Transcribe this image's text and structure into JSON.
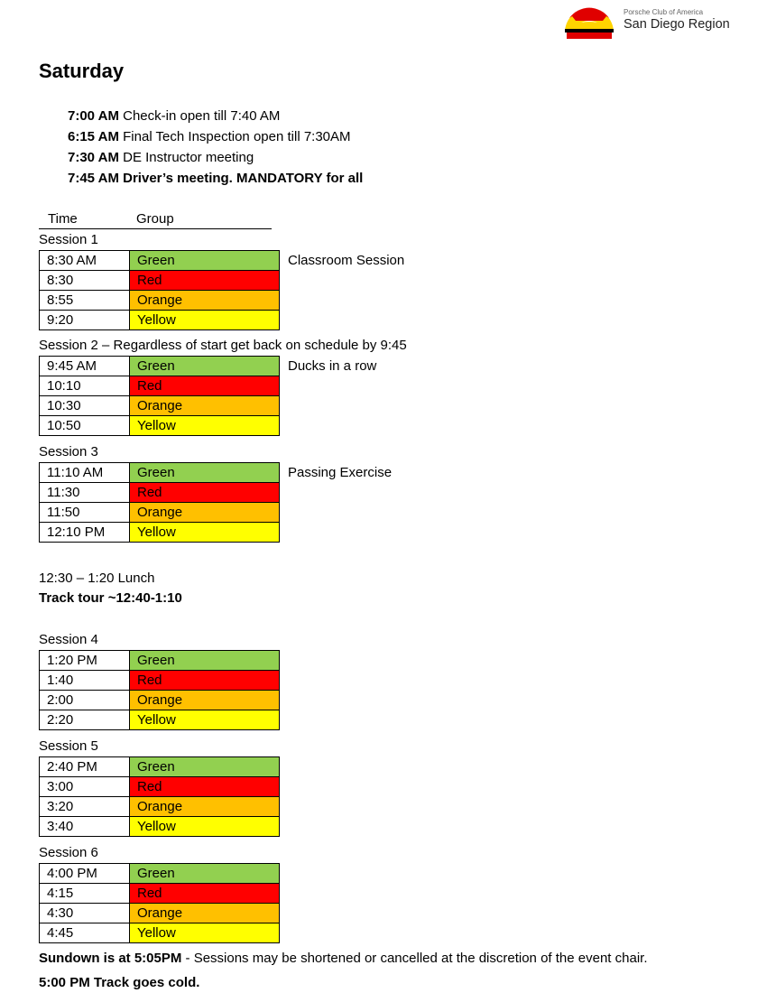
{
  "header": {
    "logo_text": "PORSCHE CLUB OF AMERICA SAN DIEGO",
    "org_subtitle": "Porsche Club of America",
    "org_title": "San Diego Region"
  },
  "day": "Saturday",
  "pre_schedule": [
    {
      "time": "7:00 AM",
      "text": " Check-in open till 7:40 AM",
      "all_bold": false
    },
    {
      "time": "6:15 AM",
      "text": " Final Tech Inspection open till 7:30AM",
      "all_bold": false
    },
    {
      "time": "7:30 AM",
      "text": " DE Instructor meeting",
      "all_bold": false
    },
    {
      "time": "7:45 AM",
      "text": " Driver’s meeting. MANDATORY for all",
      "all_bold": true
    }
  ],
  "columns": {
    "time": "Time",
    "group": "Group"
  },
  "group_colors": {
    "Green": "#92D050",
    "Red": "#FF0000",
    "Orange": "#FFC000",
    "Yellow": "#FFFF00"
  },
  "sessions": [
    {
      "label": "Session 1",
      "note": "Classroom Session",
      "rows": [
        [
          "8:30 AM",
          "Green"
        ],
        [
          "8:30",
          "Red"
        ],
        [
          "8:55",
          "Orange"
        ],
        [
          "9:20",
          "Yellow"
        ]
      ]
    },
    {
      "label": "Session 2 – Regardless of start get back on schedule by 9:45",
      "note": "Ducks in a row",
      "rows": [
        [
          "9:45 AM",
          "Green"
        ],
        [
          "10:10",
          "Red"
        ],
        [
          "10:30",
          "Orange"
        ],
        [
          "10:50",
          "Yellow"
        ]
      ]
    },
    {
      "label": "Session 3",
      "note": "Passing Exercise",
      "rows": [
        [
          "11:10 AM",
          "Green"
        ],
        [
          "11:30",
          "Red"
        ],
        [
          "11:50",
          "Orange"
        ],
        [
          "12:10 PM",
          "Yellow"
        ]
      ]
    },
    {
      "label": "Session 4",
      "note": "",
      "rows": [
        [
          "1:20 PM",
          "Green"
        ],
        [
          "1:40",
          "Red"
        ],
        [
          "2:00",
          "Orange"
        ],
        [
          "2:20",
          "Yellow"
        ]
      ]
    },
    {
      "label": "Session 5",
      "note": "",
      "rows": [
        [
          "2:40 PM",
          "Green"
        ],
        [
          "3:00",
          "Red"
        ],
        [
          "3:20",
          "Orange"
        ],
        [
          "3:40",
          "Yellow"
        ]
      ]
    },
    {
      "label": "Session 6",
      "note": "",
      "rows": [
        [
          "4:00 PM",
          "Green"
        ],
        [
          "4:15",
          "Red"
        ],
        [
          "4:30",
          "Orange"
        ],
        [
          "4:45",
          "Yellow"
        ]
      ]
    }
  ],
  "lunch": "12:30 – 1:20 Lunch",
  "track_tour": "Track tour ~12:40-1:10",
  "footer": {
    "sundown_bold": "Sundown is at 5:05PM",
    "sundown_rest": " - Sessions may be shortened or cancelled at the discretion of the event chair.",
    "cold": "5:00 PM Track goes cold."
  }
}
